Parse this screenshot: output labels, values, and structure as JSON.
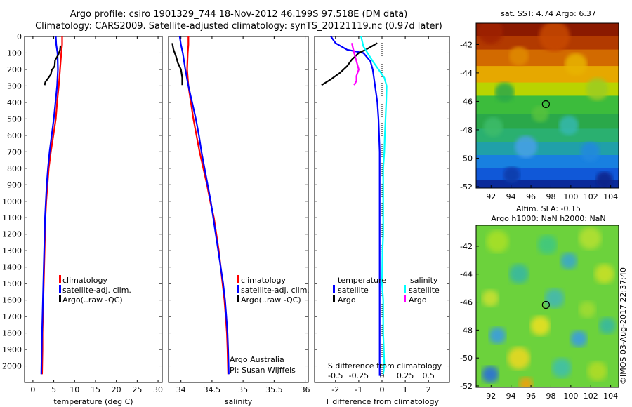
{
  "header": {
    "line1": "Argo profile: csiro 1901329_744 18-Nov-2012 46.199S 97.518E (DM data)",
    "line2": "Climatology: CARS2009. Satellite-adjusted climatology: synTS_20121119.nc (0.97d later)"
  },
  "colors": {
    "climatology": "#ff0000",
    "satellite": "#0000ff",
    "argo": "#000000",
    "sal_satellite": "#00ffff",
    "sal_argo": "#ff00ff"
  },
  "chart_data": [
    {
      "type": "line",
      "xlabel": "temperature (deg C)",
      "ylabel": "",
      "xlim": [
        -2,
        31
      ],
      "ylim": [
        2100,
        0
      ],
      "y_reversed": true,
      "xticks": [
        "0",
        "5",
        "10",
        "15",
        "20",
        "25",
        "30"
      ],
      "yticks": [
        "0",
        "100",
        "200",
        "300",
        "400",
        "500",
        "600",
        "700",
        "800",
        "900",
        "1000",
        "1100",
        "1200",
        "1300",
        "1400",
        "1500",
        "1600",
        "1700",
        "1800",
        "1900",
        "2000"
      ],
      "legend": [
        "climatology",
        "satellite-adj. clim.",
        "Argo(..raw -QC)"
      ],
      "series": [
        {
          "name": "climatology",
          "color": "#ff0000",
          "x": [
            7.0,
            7.0,
            6.8,
            6.5,
            6.2,
            5.8,
            5.5,
            4.9,
            4.3,
            3.8,
            3.5,
            3.2,
            3.0,
            2.9,
            2.8,
            2.7,
            2.6,
            2.5,
            2.4,
            2.3,
            2.3,
            2.2
          ],
          "y": [
            0,
            50,
            100,
            200,
            300,
            400,
            500,
            600,
            700,
            800,
            900,
            1000,
            1100,
            1200,
            1300,
            1400,
            1500,
            1600,
            1700,
            1800,
            1900,
            2050
          ]
        },
        {
          "name": "satellite-adj. clim.",
          "color": "#0000ff",
          "x": [
            5.5,
            5.6,
            5.9,
            6.0,
            5.8,
            5.4,
            5.0,
            4.5,
            4.0,
            3.6,
            3.3,
            3.1,
            2.9,
            2.8,
            2.7,
            2.6,
            2.5,
            2.4,
            2.3,
            2.2,
            2.1,
            2.0
          ],
          "y": [
            0,
            50,
            100,
            200,
            300,
            400,
            500,
            600,
            700,
            800,
            900,
            1000,
            1100,
            1200,
            1300,
            1400,
            1500,
            1600,
            1700,
            1800,
            1900,
            2050
          ]
        },
        {
          "name": "Argo(..raw -QC)",
          "color": "#000000",
          "x": [
            6.6,
            6.5,
            6.1,
            5.3,
            5.2,
            4.5,
            4.3,
            3.6,
            3.0,
            2.8
          ],
          "y": [
            55,
            80,
            110,
            145,
            180,
            205,
            230,
            255,
            275,
            295
          ]
        }
      ]
    },
    {
      "type": "line",
      "xlabel": "salinity",
      "ylabel": "",
      "xlim": [
        33.8,
        36.05
      ],
      "ylim": [
        2100,
        0
      ],
      "y_reversed": true,
      "xticks": [
        "34",
        "34.5",
        "35",
        "35.5",
        "36"
      ],
      "legend": [
        "climatology",
        "satellite-adj. clim.",
        "Argo(..raw -QC)"
      ],
      "annotations": [
        "Argo Australia",
        "PI: Susan Wijffels"
      ],
      "series": [
        {
          "name": "climatology",
          "color": "#ff0000",
          "x": [
            34.12,
            34.12,
            34.11,
            34.1,
            34.12,
            34.16,
            34.2,
            34.25,
            34.3,
            34.36,
            34.42,
            34.47,
            34.53,
            34.57,
            34.61,
            34.64,
            34.67,
            34.7,
            34.72,
            34.74,
            34.75,
            34.76
          ],
          "y": [
            0,
            50,
            100,
            200,
            300,
            400,
            500,
            600,
            700,
            800,
            900,
            1000,
            1100,
            1200,
            1300,
            1400,
            1500,
            1600,
            1700,
            1800,
            1900,
            2050
          ]
        },
        {
          "name": "satellite-adj. clim.",
          "color": "#0000ff",
          "x": [
            33.98,
            34.0,
            34.03,
            34.07,
            34.12,
            34.18,
            34.24,
            34.29,
            34.33,
            34.38,
            34.43,
            34.48,
            34.52,
            34.56,
            34.6,
            34.64,
            34.68,
            34.71,
            34.73,
            34.75,
            34.76,
            34.77
          ],
          "y": [
            0,
            50,
            100,
            200,
            300,
            400,
            500,
            600,
            700,
            800,
            900,
            1000,
            1100,
            1200,
            1300,
            1400,
            1500,
            1600,
            1700,
            1800,
            1900,
            2050
          ]
        },
        {
          "name": "Argo(..raw -QC)",
          "color": "#000000",
          "x": [
            33.86,
            33.88,
            33.92,
            33.95,
            34.0,
            34.02,
            34.02
          ],
          "y": [
            40,
            80,
            120,
            160,
            200,
            250,
            295
          ]
        }
      ]
    },
    {
      "type": "line",
      "xlabel": "T difference from climatology",
      "xlabel_top": "S difference from climatology",
      "ylabel": "",
      "xlim": [
        -2.9,
        2.9
      ],
      "ylim": [
        2100,
        0
      ],
      "y_reversed": true,
      "xticks": [
        "-2",
        "-1",
        "0",
        "1",
        "2"
      ],
      "xticks_top": [
        "-0.5",
        "-0.25",
        "0",
        "0.25",
        "0.5"
      ],
      "legend_groups": [
        "temperature",
        "salinity"
      ],
      "legend": [
        "satellite",
        "Argo",
        "satellite",
        "Argo"
      ],
      "series": [
        {
          "name": "satellite",
          "group": "temperature",
          "color": "#0000ff",
          "x": [
            -2.2,
            -2.0,
            -1.5,
            -0.8,
            -0.5,
            -0.4,
            -0.3,
            -0.2,
            -0.15,
            -0.1,
            -0.1,
            -0.1,
            -0.1,
            -0.1,
            -0.1,
            -0.1,
            -0.1,
            -0.1,
            -0.1,
            -0.1,
            -0.1
          ],
          "y": [
            0,
            40,
            80,
            100,
            150,
            200,
            300,
            400,
            500,
            700,
            900,
            1100,
            1300,
            1500,
            1600,
            1700,
            1800,
            1900,
            2000,
            2050,
            2060
          ]
        },
        {
          "name": "Argo",
          "group": "temperature",
          "color": "#000000",
          "x": [
            -0.2,
            -0.7,
            -1.0,
            -1.3,
            -1.5,
            -1.8,
            -2.2,
            -2.6
          ],
          "y": [
            40,
            80,
            100,
            140,
            180,
            220,
            260,
            295
          ]
        },
        {
          "name": "satellite",
          "group": "salinity",
          "color": "#00ffff",
          "x": [
            -0.9,
            -0.8,
            -0.4,
            0.1,
            0.2,
            0.18,
            0.15,
            0.12,
            0.1,
            0.05,
            0.05,
            0.05,
            0.02,
            0.0,
            0.05,
            0.05,
            0.05,
            0.08,
            0.1,
            0.05
          ],
          "y": [
            0,
            60,
            150,
            250,
            300,
            400,
            500,
            600,
            700,
            800,
            1000,
            1200,
            1300,
            1500,
            1600,
            1700,
            1800,
            1900,
            2000,
            2050
          ]
        },
        {
          "name": "Argo",
          "group": "salinity",
          "color": "#ff00ff",
          "x": [
            -1.3,
            -1.2,
            -1.1,
            -1.0,
            -1.1,
            -1.1,
            -1.2
          ],
          "y": [
            40,
            100,
            150,
            200,
            240,
            270,
            295
          ]
        }
      ]
    },
    {
      "type": "heatmap",
      "title": "sat. SST: 4.74  Argo: 6.37",
      "xticks": [
        "92",
        "94",
        "96",
        "98",
        "100",
        "102",
        "104"
      ],
      "yticks": [
        "-42",
        "-44",
        "-46",
        "-48",
        "-50",
        "-52"
      ],
      "xlim": [
        90.5,
        104.8
      ],
      "ylim": [
        -52.1,
        -40.5
      ],
      "marker": {
        "lon": 97.5,
        "lat": -46.2
      }
    },
    {
      "type": "heatmap",
      "title": "Altim. SLA: -0.15",
      "subtitle": "Argo h1000: NaN h2000: NaN",
      "xticks": [
        "92",
        "94",
        "96",
        "98",
        "100",
        "102",
        "104"
      ],
      "yticks": [
        "-42",
        "-44",
        "-46",
        "-48",
        "-50",
        "-52"
      ],
      "xlim": [
        90.5,
        104.8
      ],
      "ylim": [
        -52.1,
        -40.5
      ],
      "marker": {
        "lon": 97.5,
        "lat": -46.2
      }
    }
  ],
  "panels": {
    "p1_legend": [
      "climatology",
      "satellite-adj. clim.",
      "Argo(..raw -QC)"
    ],
    "p2_legend": [
      "climatology",
      "satellite-adj. clim.",
      "Argo(..raw -QC)"
    ],
    "p2_note1": "Argo Australia",
    "p2_note2": "PI: Susan Wijffels",
    "p3_head_t": "temperature",
    "p3_head_s": "salinity",
    "p3_t_sat": "satellite",
    "p3_t_argo": "Argo",
    "p3_s_sat": "satellite",
    "p3_s_argo": "Argo",
    "p3_top_label": "S difference from climatology",
    "map1_title": "sat. SST: 4.74  Argo: 6.37",
    "map2_title1": "Altim. SLA: -0.15",
    "map2_title2": "Argo h1000: NaN h2000: NaN",
    "side_text": "©IMOS 03-Aug-2017 22:37:40"
  }
}
